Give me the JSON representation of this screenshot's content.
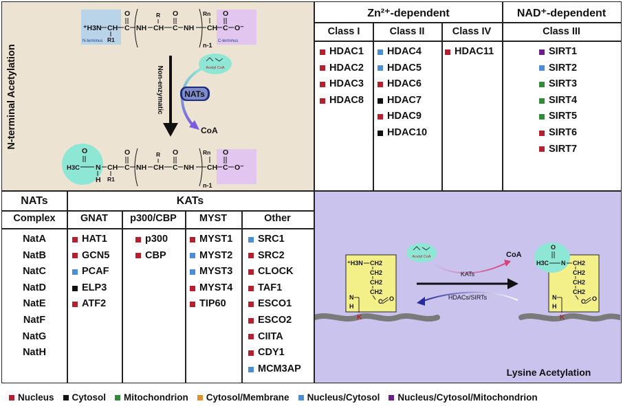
{
  "colors": {
    "nucleus": "#b5202e",
    "cytosol": "#111111",
    "mitochondrion": "#2e8b3a",
    "cytosol_membrane": "#e0902a",
    "nucleus_cytosol": "#4a8fd6",
    "nucleus_cytosol_mitochondrion": "#6a1f8a",
    "nt_panel_bg": "#ece3d2",
    "lysine_panel_bg": "#c9c3ee"
  },
  "nterm": {
    "title": "N-terminal Acetylation",
    "n_label": "N-terminus",
    "c_label": "C-terminus",
    "n_minus_1": "n-1",
    "non_enzymatic": "Non-enzymatic",
    "nats": "NATs",
    "acetyl_coa": "Acetyl CoA",
    "coa": "CoA",
    "h3n": "⁺H3N",
    "h3c": "H3C",
    "ch": "CH",
    "c": "C",
    "nh": "NH",
    "n": "N",
    "h": "H",
    "r": "R",
    "r1": "R1",
    "rn": "Rn",
    "o": "O",
    "o_minus": "O⁻"
  },
  "hdac": {
    "zn_header": "Zn²⁺-dependent",
    "nad_header": "NAD⁺-dependent",
    "class1": {
      "title": "Class I",
      "items": [
        {
          "label": "HDAC1",
          "loc": "nucleus"
        },
        {
          "label": "HDAC2",
          "loc": "nucleus"
        },
        {
          "label": "HDAC3",
          "loc": "nucleus"
        },
        {
          "label": "HDAC8",
          "loc": "nucleus"
        }
      ]
    },
    "class2": {
      "title": "Class II",
      "items": [
        {
          "label": "HDAC4",
          "loc": "nucleus_cytosol"
        },
        {
          "label": "HDAC5",
          "loc": "nucleus_cytosol"
        },
        {
          "label": "HDAC6",
          "loc": "nucleus"
        },
        {
          "label": "HDAC7",
          "loc": "cytosol"
        },
        {
          "label": "HDAC9",
          "loc": "nucleus"
        },
        {
          "label": "HDAC10",
          "loc": "cytosol"
        }
      ]
    },
    "class4": {
      "title": "Class IV",
      "items": [
        {
          "label": "HDAC11",
          "loc": "nucleus"
        }
      ]
    },
    "class3": {
      "title": "Class III",
      "items": [
        {
          "label": "SIRT1",
          "loc": "nucleus_cytosol_mitochondrion"
        },
        {
          "label": "SIRT2",
          "loc": "nucleus_cytosol"
        },
        {
          "label": "SIRT3",
          "loc": "mitochondrion"
        },
        {
          "label": "SIRT4",
          "loc": "mitochondrion"
        },
        {
          "label": "SIRT5",
          "loc": "mitochondrion"
        },
        {
          "label": "SIRT6",
          "loc": "nucleus"
        },
        {
          "label": "SIRT7",
          "loc": "nucleus"
        }
      ]
    }
  },
  "acetyltransferases": {
    "nats_header": "NATs",
    "kats_header": "KATs",
    "complex": {
      "title": "Complex",
      "items": [
        "NatA",
        "NatB",
        "NatC",
        "NatD",
        "NatE",
        "NatF",
        "NatG",
        "NatH"
      ]
    },
    "gnat": {
      "title": "GNAT",
      "items": [
        {
          "label": "HAT1",
          "loc": "nucleus"
        },
        {
          "label": "GCN5",
          "loc": "nucleus"
        },
        {
          "label": "PCAF",
          "loc": "nucleus_cytosol"
        },
        {
          "label": "ELP3",
          "loc": "cytosol"
        },
        {
          "label": "ATF2",
          "loc": "nucleus"
        }
      ]
    },
    "p300cbp": {
      "title": "p300/CBP",
      "items": [
        {
          "label": "p300",
          "loc": "nucleus"
        },
        {
          "label": "CBP",
          "loc": "nucleus"
        }
      ]
    },
    "myst": {
      "title": "MYST",
      "items": [
        {
          "label": "MYST1",
          "loc": "nucleus"
        },
        {
          "label": "MYST2",
          "loc": "nucleus_cytosol"
        },
        {
          "label": "MYST3",
          "loc": "nucleus_cytosol"
        },
        {
          "label": "MYST4",
          "loc": "nucleus"
        },
        {
          "label": "TIP60",
          "loc": "nucleus"
        }
      ]
    },
    "other": {
      "title": "Other",
      "items": [
        {
          "label": "SRC1",
          "loc": "nucleus_cytosol"
        },
        {
          "label": "SRC2",
          "loc": "nucleus"
        },
        {
          "label": "CLOCK",
          "loc": "nucleus"
        },
        {
          "label": "TAF1",
          "loc": "nucleus"
        },
        {
          "label": "ESCO1",
          "loc": "nucleus"
        },
        {
          "label": "ESCO2",
          "loc": "nucleus"
        },
        {
          "label": "CIITA",
          "loc": "nucleus"
        },
        {
          "label": "CDY1",
          "loc": "nucleus"
        },
        {
          "label": "MCM3AP",
          "loc": "nucleus_cytosol"
        }
      ]
    }
  },
  "lysine": {
    "title": "Lysine Acetylation",
    "kats": "KATs",
    "hdacs_sirts": "HDACs/SIRTs",
    "coa": "CoA",
    "acetyl_coa": "Acetyl CoA",
    "h3n": "⁺H3N",
    "h3c": "H3C",
    "ch2": "CH2",
    "n": "N",
    "h": "H",
    "k": "K",
    "c": "C",
    "o": "O"
  },
  "legend": [
    {
      "label": "Nucleus",
      "loc": "nucleus"
    },
    {
      "label": "Cytosol",
      "loc": "cytosol"
    },
    {
      "label": "Mitochondrion",
      "loc": "mitochondrion"
    },
    {
      "label": "Cytosol/Membrane",
      "loc": "cytosol_membrane"
    },
    {
      "label": "Nucleus/Cytosol",
      "loc": "nucleus_cytosol"
    },
    {
      "label": "Nucleus/Cytosol/Mitochondrion",
      "loc": "nucleus_cytosol_mitochondrion"
    }
  ]
}
